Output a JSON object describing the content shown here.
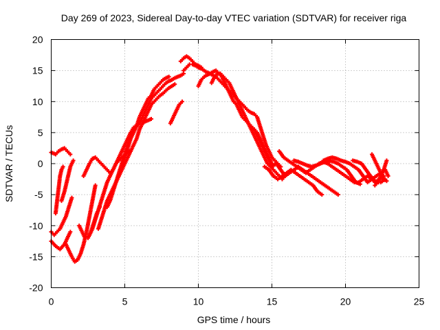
{
  "chart_data": {
    "type": "scatter",
    "title": "Day 269 of 2023, Sidereal Day-to-day VTEC variation (SDTVAR) for receiver riga",
    "xlabel": "GPS time / hours",
    "ylabel": "SDTVAR / TECUs",
    "xlim": [
      0,
      25
    ],
    "ylim": [
      -20,
      20
    ],
    "xticks": [
      0,
      5,
      10,
      15,
      20,
      25
    ],
    "yticks": [
      -20,
      -15,
      -10,
      -5,
      0,
      5,
      10,
      15,
      20
    ],
    "grid": true,
    "marker": "+",
    "color": "#ff0000",
    "series": [
      {
        "name": "arc-1",
        "x": [
          0.0,
          0.3,
          0.5,
          0.7,
          0.9,
          1.1,
          1.3
        ],
        "y": [
          1.8,
          1.5,
          2.0,
          2.3,
          2.5,
          2.0,
          1.5
        ]
      },
      {
        "name": "arc-2",
        "x": [
          0.0,
          0.2,
          0.4,
          0.6,
          0.8,
          1.0,
          1.2,
          1.4
        ],
        "y": [
          -11.0,
          -11.5,
          -11.0,
          -10.5,
          -9.5,
          -8.5,
          -7.0,
          -5.5
        ]
      },
      {
        "name": "arc-3",
        "x": [
          0.0,
          0.3,
          0.6,
          0.9,
          1.1,
          1.3
        ],
        "y": [
          -12.5,
          -13.3,
          -13.8,
          -13.0,
          -12.0,
          -11.0
        ]
      },
      {
        "name": "arc-4",
        "x": [
          0.3,
          0.4,
          0.5,
          0.6,
          0.7,
          0.8
        ],
        "y": [
          -8.0,
          -6.0,
          -4.0,
          -2.0,
          -1.0,
          -0.5
        ]
      },
      {
        "name": "arc-5",
        "x": [
          0.7,
          0.9,
          1.1,
          1.3,
          1.5
        ],
        "y": [
          -6.0,
          -4.5,
          -2.5,
          -0.5,
          0.5
        ]
      },
      {
        "name": "arc-6",
        "x": [
          1.0,
          1.2,
          1.4,
          1.6,
          1.8,
          2.0,
          2.2,
          2.4,
          2.6,
          2.8,
          3.0
        ],
        "y": [
          -13.0,
          -14.0,
          -15.0,
          -15.8,
          -15.5,
          -14.5,
          -13.0,
          -11.0,
          -8.5,
          -6.0,
          -3.5
        ]
      },
      {
        "name": "arc-7",
        "x": [
          1.9,
          2.1,
          2.3,
          2.5,
          2.7,
          2.9,
          3.1,
          3.3
        ],
        "y": [
          -10.0,
          -11.0,
          -12.0,
          -12.0,
          -11.0,
          -9.5,
          -8.0,
          -7.0
        ]
      },
      {
        "name": "arc-8",
        "x": [
          2.2,
          2.4,
          2.6,
          2.8,
          3.0,
          3.2,
          3.4,
          3.6,
          3.8,
          4.0,
          4.2,
          4.4,
          4.6,
          4.8,
          5.0,
          5.3
        ],
        "y": [
          -2.0,
          -1.0,
          0.0,
          0.8,
          1.0,
          0.5,
          0.0,
          -0.5,
          -1.0,
          -1.5,
          -1.0,
          0.0,
          0.5,
          1.0,
          1.5,
          2.0
        ]
      },
      {
        "name": "arc-9",
        "x": [
          2.6,
          2.8,
          3.0,
          3.2,
          3.4,
          3.6,
          3.8,
          4.0,
          4.2,
          4.4,
          4.6,
          4.8,
          5.0,
          5.2,
          5.4,
          5.6,
          5.8,
          6.0,
          6.2,
          6.4,
          6.6,
          6.8
        ],
        "y": [
          -11.5,
          -10.5,
          -9.0,
          -7.5,
          -6.0,
          -4.5,
          -3.0,
          -2.0,
          -1.0,
          0.0,
          1.0,
          2.0,
          3.0,
          4.0,
          5.0,
          5.8,
          6.2,
          6.5,
          6.5,
          6.8,
          7.0,
          7.2
        ]
      },
      {
        "name": "arc-10",
        "x": [
          3.2,
          3.4,
          3.6,
          3.8,
          4.0,
          4.2,
          4.4,
          4.6,
          4.8,
          5.0,
          5.2,
          5.4,
          5.6,
          5.8,
          6.0,
          6.2,
          6.4,
          6.6,
          6.8,
          7.0,
          7.2,
          7.4,
          7.6,
          7.8,
          8.0,
          8.2,
          8.4
        ],
        "y": [
          -10.5,
          -9.0,
          -7.5,
          -6.0,
          -5.0,
          -4.0,
          -3.0,
          -2.0,
          -1.0,
          0.0,
          1.0,
          2.0,
          3.0,
          4.0,
          5.5,
          6.5,
          7.5,
          8.5,
          9.5,
          10.0,
          10.5,
          11.0,
          11.3,
          11.8,
          12.2,
          12.5,
          12.8
        ]
      },
      {
        "name": "arc-11",
        "x": [
          3.8,
          4.0,
          4.2,
          4.4,
          4.6,
          4.8,
          5.0,
          5.2,
          5.4,
          5.6,
          5.8,
          6.0,
          6.2,
          6.4,
          6.6,
          6.8,
          7.0,
          7.2,
          7.4,
          7.6,
          7.8,
          8.0,
          8.2,
          8.4,
          8.6,
          8.8,
          9.0
        ],
        "y": [
          -7.0,
          -6.0,
          -4.5,
          -3.0,
          -1.5,
          0.0,
          1.5,
          3.0,
          4.5,
          5.5,
          6.0,
          6.5,
          7.5,
          8.5,
          9.5,
          10.5,
          11.0,
          11.5,
          12.0,
          12.5,
          13.0,
          13.3,
          13.5,
          13.8,
          14.0,
          14.2,
          14.5
        ]
      },
      {
        "name": "arc-12",
        "x": [
          4.8,
          5.0,
          5.2,
          5.4,
          5.6,
          5.8,
          6.0,
          6.2,
          6.4,
          6.6,
          6.8,
          7.0,
          7.2,
          7.4,
          7.6,
          7.8,
          8.0
        ],
        "y": [
          -0.5,
          1.0,
          2.5,
          4.0,
          5.0,
          6.0,
          7.5,
          8.5,
          9.5,
          10.5,
          11.0,
          12.0,
          12.5,
          13.0,
          13.5,
          13.8,
          14.0
        ]
      },
      {
        "name": "arc-13",
        "x": [
          8.1,
          8.3,
          8.5,
          8.7,
          8.9
        ],
        "y": [
          6.5,
          7.5,
          8.5,
          9.5,
          10.0
        ]
      },
      {
        "name": "arc-14",
        "x": [
          8.8,
          9.0,
          9.2,
          9.4,
          9.6,
          9.8,
          10.0,
          10.2
        ],
        "y": [
          16.5,
          17.0,
          17.3,
          17.0,
          16.5,
          16.0,
          15.8,
          15.5
        ]
      },
      {
        "name": "arc-15",
        "x": [
          9.0,
          9.2,
          9.4,
          9.6,
          9.8,
          10.0,
          10.2,
          10.4,
          10.6,
          10.8,
          11.0,
          11.2,
          11.4,
          11.6,
          11.8,
          12.0,
          12.2,
          12.4,
          12.6,
          12.8,
          13.0,
          13.2,
          13.4,
          13.6,
          13.8,
          14.0,
          14.2,
          14.4,
          14.6,
          14.8,
          15.0,
          15.2,
          15.4,
          15.6
        ],
        "y": [
          15.0,
          15.5,
          16.0,
          16.0,
          15.8,
          15.5,
          15.3,
          15.0,
          14.7,
          14.5,
          14.2,
          14.0,
          13.5,
          13.0,
          12.5,
          12.0,
          11.5,
          11.0,
          10.5,
          10.0,
          9.5,
          9.0,
          8.5,
          8.2,
          8.0,
          7.5,
          6.0,
          4.5,
          3.0,
          2.0,
          1.0,
          0.5,
          0.0,
          -0.5
        ]
      },
      {
        "name": "arc-16",
        "x": [
          10.0,
          10.2,
          10.4,
          10.6,
          10.8,
          11.0,
          11.2,
          11.4,
          11.6,
          11.8,
          12.0,
          12.2,
          12.4,
          12.6,
          12.8,
          13.0,
          13.2,
          13.4,
          13.6,
          13.8,
          14.0,
          14.2,
          14.4,
          14.6,
          14.8,
          15.0
        ],
        "y": [
          12.5,
          13.5,
          14.0,
          14.3,
          14.5,
          14.8,
          15.0,
          14.5,
          14.0,
          13.0,
          12.0,
          11.0,
          10.0,
          9.5,
          8.5,
          7.5,
          7.0,
          6.5,
          6.0,
          5.5,
          5.0,
          4.0,
          3.0,
          2.0,
          1.0,
          0.0
        ]
      },
      {
        "name": "arc-17",
        "x": [
          10.9,
          11.1,
          11.3,
          11.5,
          11.7,
          11.9,
          12.1,
          12.3,
          12.5,
          12.7,
          12.9,
          13.1,
          13.3,
          13.5,
          13.7,
          13.9,
          14.1,
          14.3,
          14.5,
          14.7,
          14.9,
          15.1,
          15.3,
          15.5,
          15.7,
          15.9
        ],
        "y": [
          13.0,
          14.0,
          14.5,
          14.5,
          14.0,
          13.5,
          13.0,
          12.0,
          11.0,
          10.0,
          9.0,
          8.0,
          7.0,
          6.0,
          5.0,
          4.0,
          3.0,
          2.0,
          1.0,
          0.0,
          -0.5,
          -1.0,
          -1.5,
          -2.0,
          -2.5,
          -2.0
        ]
      },
      {
        "name": "arc-18",
        "x": [
          13.8,
          14.0,
          14.2,
          14.4,
          14.6,
          14.8,
          15.0
        ],
        "y": [
          5.5,
          4.5,
          3.5,
          2.5,
          1.5,
          0.5,
          -0.5
        ]
      },
      {
        "name": "arc-19",
        "x": [
          14.5,
          14.8,
          15.1,
          15.4,
          15.7,
          16.0,
          16.3,
          16.6,
          16.9,
          17.2,
          17.5,
          17.8,
          18.1,
          18.4
        ],
        "y": [
          -0.5,
          -1.0,
          -2.0,
          -2.5,
          -2.0,
          -1.5,
          -1.0,
          -1.5,
          -2.0,
          -2.5,
          -3.0,
          -3.5,
          -4.5,
          -5.0
        ]
      },
      {
        "name": "arc-20",
        "x": [
          15.0,
          15.3,
          15.6,
          15.9,
          16.2,
          16.5,
          16.8,
          17.1,
          17.4,
          17.7,
          18.0,
          18.3,
          18.6,
          18.9,
          19.2,
          19.5
        ],
        "y": [
          -0.5,
          0.0,
          -1.0,
          -2.0,
          -1.5,
          -1.0,
          -0.5,
          -1.0,
          -1.5,
          -2.0,
          -2.5,
          -3.0,
          -3.5,
          -4.0,
          -4.5,
          -5.0
        ]
      },
      {
        "name": "arc-21",
        "x": [
          15.5,
          15.8,
          16.1,
          16.4,
          16.7,
          17.0,
          17.3,
          17.6,
          17.9,
          18.2,
          18.5,
          18.8,
          19.1,
          19.4,
          19.7,
          20.0,
          20.3,
          20.6,
          20.9,
          21.2,
          21.5,
          21.8,
          22.1,
          22.4,
          22.7
        ],
        "y": [
          2.0,
          1.0,
          0.5,
          0.0,
          -0.5,
          -1.0,
          -1.5,
          -1.0,
          -0.5,
          0.0,
          0.3,
          0.0,
          -0.5,
          -1.0,
          -1.5,
          -2.0,
          -2.5,
          -3.0,
          -3.0,
          -2.5,
          -2.0,
          -2.5,
          -3.0,
          -3.0,
          -2.5
        ]
      },
      {
        "name": "arc-22",
        "x": [
          16.5,
          16.8,
          17.1,
          17.4,
          17.7,
          18.0,
          18.3,
          18.6,
          18.9,
          19.2,
          19.5,
          19.8,
          20.1,
          20.4,
          20.7,
          21.0
        ],
        "y": [
          0.5,
          0.3,
          0.0,
          -0.3,
          -0.5,
          -0.3,
          0.0,
          0.3,
          0.5,
          0.3,
          0.0,
          -0.5,
          -1.0,
          -2.0,
          -3.0,
          -3.3
        ]
      },
      {
        "name": "arc-23",
        "x": [
          18.5,
          18.8,
          19.1,
          19.4,
          19.7,
          20.0,
          20.3,
          20.6,
          20.9,
          21.2,
          21.5,
          21.8,
          22.1,
          22.4,
          22.7,
          22.9
        ],
        "y": [
          0.5,
          0.8,
          1.0,
          0.8,
          0.5,
          0.3,
          0.0,
          -0.5,
          -1.0,
          -2.0,
          -3.0,
          -2.5,
          -2.0,
          -1.5,
          -1.0,
          -2.0
        ]
      },
      {
        "name": "arc-24",
        "x": [
          20.5,
          20.8,
          21.1,
          21.4,
          21.7,
          22.0,
          22.3,
          22.6
        ],
        "y": [
          0.5,
          0.3,
          0.0,
          -1.0,
          -2.0,
          -3.0,
          -2.5,
          -2.0
        ]
      },
      {
        "name": "arc-25",
        "x": [
          21.8,
          22.0,
          22.2,
          22.4,
          22.6,
          22.8
        ],
        "y": [
          1.5,
          0.5,
          -0.5,
          -1.5,
          -2.5,
          -2.8
        ]
      },
      {
        "name": "arc-26",
        "x": [
          22.0,
          22.2,
          22.4,
          22.6,
          22.8
        ],
        "y": [
          -3.5,
          -3.0,
          -2.0,
          -1.0,
          0.5
        ]
      }
    ]
  }
}
